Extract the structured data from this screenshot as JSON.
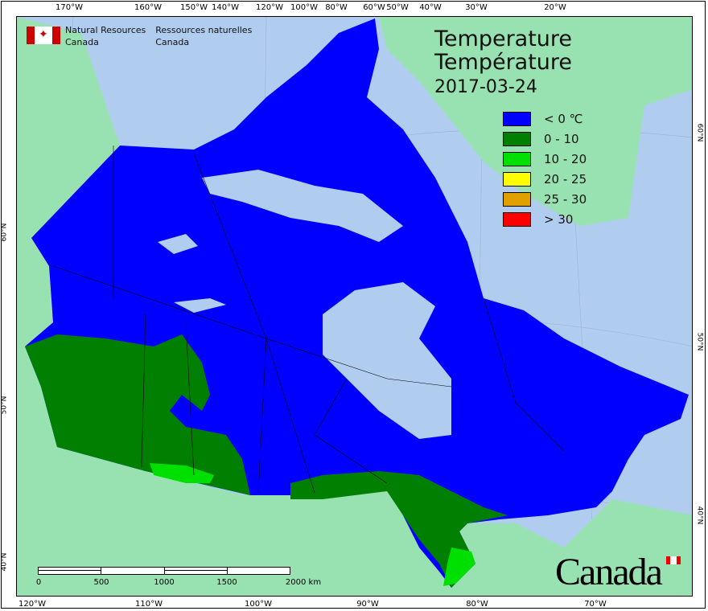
{
  "header": {
    "agency_en": [
      "Natural Resources",
      "Canada"
    ],
    "agency_fr": [
      "Ressources naturelles",
      "Canada"
    ]
  },
  "map": {
    "title_en": "Temperature",
    "title_fr": "Température",
    "date": "2017-03-24",
    "legend": [
      {
        "label": "< 0 ℃",
        "color": "#0000ff"
      },
      {
        "label": "0 - 10",
        "color": "#007f00"
      },
      {
        "label": "10 - 20",
        "color": "#00e000"
      },
      {
        "label": "20 - 25",
        "color": "#ffff00"
      },
      {
        "label": "25 - 30",
        "color": "#e0a000"
      },
      {
        "label": "> 30",
        "color": "#ff0000"
      }
    ],
    "colors": {
      "ocean": "#b0cdf0",
      "foreign_land": "#98e2b2"
    },
    "top_ticks": [
      "170°W",
      "160°W",
      "150°W",
      "140°W",
      "120°W",
      "100°W",
      "80°W",
      "60°W",
      "50°W",
      "40°W",
      "30°W",
      "20°W"
    ],
    "bottom_ticks": [
      "120°W",
      "110°W",
      "100°W",
      "90°W",
      "80°W",
      "70°W"
    ],
    "left_ticks": [
      "60°N",
      "50°N",
      "40°N"
    ],
    "right_ticks": [
      "60°N",
      "50°N",
      "40°N"
    ],
    "scale_labels": [
      "0",
      "500",
      "1000",
      "1500",
      "2000  km"
    ],
    "wordmark": "Canada"
  }
}
